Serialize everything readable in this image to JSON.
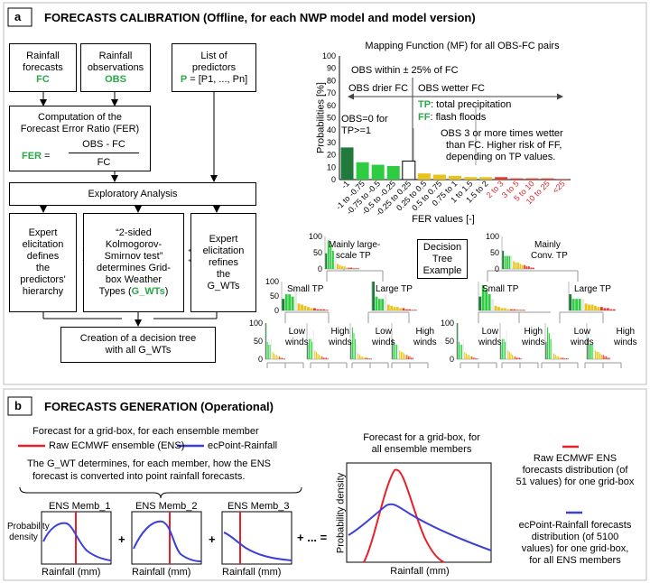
{
  "section_a": {
    "letter": "a",
    "title": "FORECASTS CALIBRATION (Offline, for each NWP model and model version)",
    "boxes": {
      "fc_line1": "Rainfall",
      "fc_line2": "forecasts",
      "fc_code": "FC",
      "obs_line1": "Rainfall",
      "obs_line2": "observations",
      "obs_code": "OBS",
      "pred_line1": "List of",
      "pred_line2": "predictors",
      "pred_code": "P",
      "pred_list": " = [P1, ..., Pn]",
      "fer_line1": "Computation of the",
      "fer_line2": "Forecast Error Ratio (FER)",
      "fer_code": "FER",
      "fer_eq": " = ",
      "fer_num": "OBS - FC",
      "fer_den": "FC",
      "explore": "Exploratory Analysis",
      "expert1_l1": "Expert",
      "expert1_l2": "elicitation",
      "expert1_l3": "defines",
      "expert1_l4": "the",
      "expert1_l5": "predictors'",
      "expert1_l6": "hierarchy",
      "ks_l1": "“2-sided",
      "ks_l2": "Kolmogorov-",
      "ks_l3": "Smirnov test”",
      "ks_l4": "determines Grid-",
      "ks_l5": "box Weather",
      "ks_l6a": "Types (",
      "ks_code": "G_WTs",
      "ks_l6b": ")",
      "expert2_l1": "Expert",
      "expert2_l2": "elicitation",
      "expert2_l3": "refines",
      "expert2_l4": "the",
      "expert2_l5": "G_WTs",
      "tree_l1": "Creation of a decision tree",
      "tree_l2": "with all G_WTs"
    },
    "mf_chart": {
      "title": "Mapping Function (MF) for all OBS-FC pairs",
      "ylabel": "Probabilities [%]",
      "xlabel": "FER values [-]",
      "yticks": [
        "100",
        "90",
        "80",
        "70",
        "60",
        "50",
        "40",
        "30",
        "20",
        "10",
        "0"
      ],
      "ann_within": "OBS within ± 25% of FC",
      "ann_drier": "OBS drier FC",
      "ann_wetter": "OBS wetter  FC",
      "ann_tp_code": "TP",
      "ann_tp": ": total precipitation",
      "ann_ff_code": "FF",
      "ann_ff": ": flash floods",
      "ann_obs0_l1": "OBS=0 for",
      "ann_obs0_l2": "TP>=1",
      "ann_obs3_l1": "OBS 3 or more times wetter",
      "ann_obs3_l2": "than FC. Higher risk of FF,",
      "ann_obs3_l3": "depending on TP values."
    },
    "chart_data": {
      "type": "bar",
      "title": "Mapping Function (MF) for all OBS-FC pairs",
      "xlabel": "FER values [-]",
      "ylabel": "Probabilities [%]",
      "ylim": [
        0,
        100
      ],
      "categories": [
        "-1",
        "-1 to -0.75",
        "-0.75 to -0.5",
        "-0.5 to -0.25",
        "-0.25 to 0.25",
        "0.25 to 0.5",
        "0.5 to 0.75",
        "0.75 to 1",
        "1 to 1.5",
        "1.5 to 2",
        "2 to 3",
        "3 to 5",
        "5 to 10",
        "10 to 25",
        "<25"
      ],
      "values": [
        26,
        14,
        12,
        11,
        15,
        5,
        4,
        3,
        2,
        2,
        2,
        1,
        1,
        1,
        0.5
      ],
      "colors": [
        "#1f7a3c",
        "#2ecc40",
        "#2ecc40",
        "#2ecc40",
        "#ffffff",
        "#e8c31a",
        "#e8c31a",
        "#e8c31a",
        "#e8c31a",
        "#e8c31a",
        "#e23b2e",
        "#e23b2e",
        "#e23b2e",
        "#e23b2e",
        "#e23b2e"
      ],
      "grid": false
    },
    "tree": {
      "label_l1": "Decision",
      "label_l2": "Tree",
      "label_l3": "Example",
      "nodes": {
        "large_scale_l1": "Mainly large-",
        "large_scale_l2": "scale TP",
        "conv_l1": "Mainly",
        "conv_l2": "Conv. TP",
        "small_tp": "Small TP",
        "large_tp": "Large TP",
        "low_l1": "Low",
        "low_l2": "winds",
        "high_l1": "High",
        "high_l2": "winds"
      },
      "tick100": "100",
      "tick50": "50",
      "tick0": "0"
    }
  },
  "section_b": {
    "letter": "b",
    "title": "FORECASTS GENERATION (Operational)",
    "forecast_for": "Forecast for a grid-box, for each ensemble member",
    "legend_raw": "Raw ECMWF ensemble (ENS)",
    "legend_ecp": "ecPoint-Rainfall",
    "gwt_l1": "The G_WT determines, for each member,  how the ENS",
    "gwt_l2": "forecast is converted into point rainfall forecasts.",
    "memb1": "ENS Memb_1",
    "memb2": "ENS Memb_2",
    "memb3": "ENS Memb_3",
    "plus": "+",
    "plus_dots": "+ ... =",
    "pd_l1": "Probability",
    "pd_l2": "density",
    "rain_mm": "Rainfall (mm)",
    "big_title_l1": "Forecast for a grid-box, for",
    "big_title_l2": "all ensemble members",
    "big_ylabel": "Probability density",
    "big_xlabel": "Rainfall (mm)",
    "raw_desc_l1": "Raw ECMWF ENS",
    "raw_desc_l2": "forecasts distribution (of",
    "raw_desc_l3": "51 values) for one grid-box",
    "ecp_desc_l1": "ecPoint-Rainfall forecasts",
    "ecp_desc_l2": "distribution (of 5100",
    "ecp_desc_l3": "values) for one grid-box,",
    "ecp_desc_l4": "for all ENS members",
    "colors": {
      "raw": "#e8202a",
      "ecp": "#3b3fd8",
      "green": "#2aa84a"
    }
  }
}
